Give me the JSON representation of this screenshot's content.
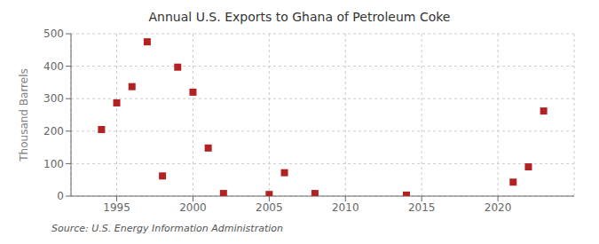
{
  "chart_data": {
    "type": "scatter",
    "title": "Annual U.S. Exports to Ghana of Petroleum Coke",
    "ylabel": "Thousand Barrels",
    "source": "Source: U.S. Energy Information Administration",
    "x": [
      1994,
      1995,
      1996,
      1997,
      1998,
      1999,
      2000,
      2001,
      2002,
      2005,
      2006,
      2008,
      2014,
      2021,
      2022,
      2023
    ],
    "values": [
      205,
      287,
      337,
      475,
      62,
      397,
      320,
      148,
      8,
      5,
      72,
      8,
      3,
      43,
      90,
      262
    ],
    "color": "#b22222",
    "marker": "square",
    "xlim": [
      1992,
      2025
    ],
    "xticks": [
      1995,
      2000,
      2005,
      2010,
      2015,
      2020
    ],
    "ylim": [
      0,
      500
    ],
    "yticks": [
      0,
      100,
      200,
      300,
      400,
      500
    ],
    "grid": true
  }
}
